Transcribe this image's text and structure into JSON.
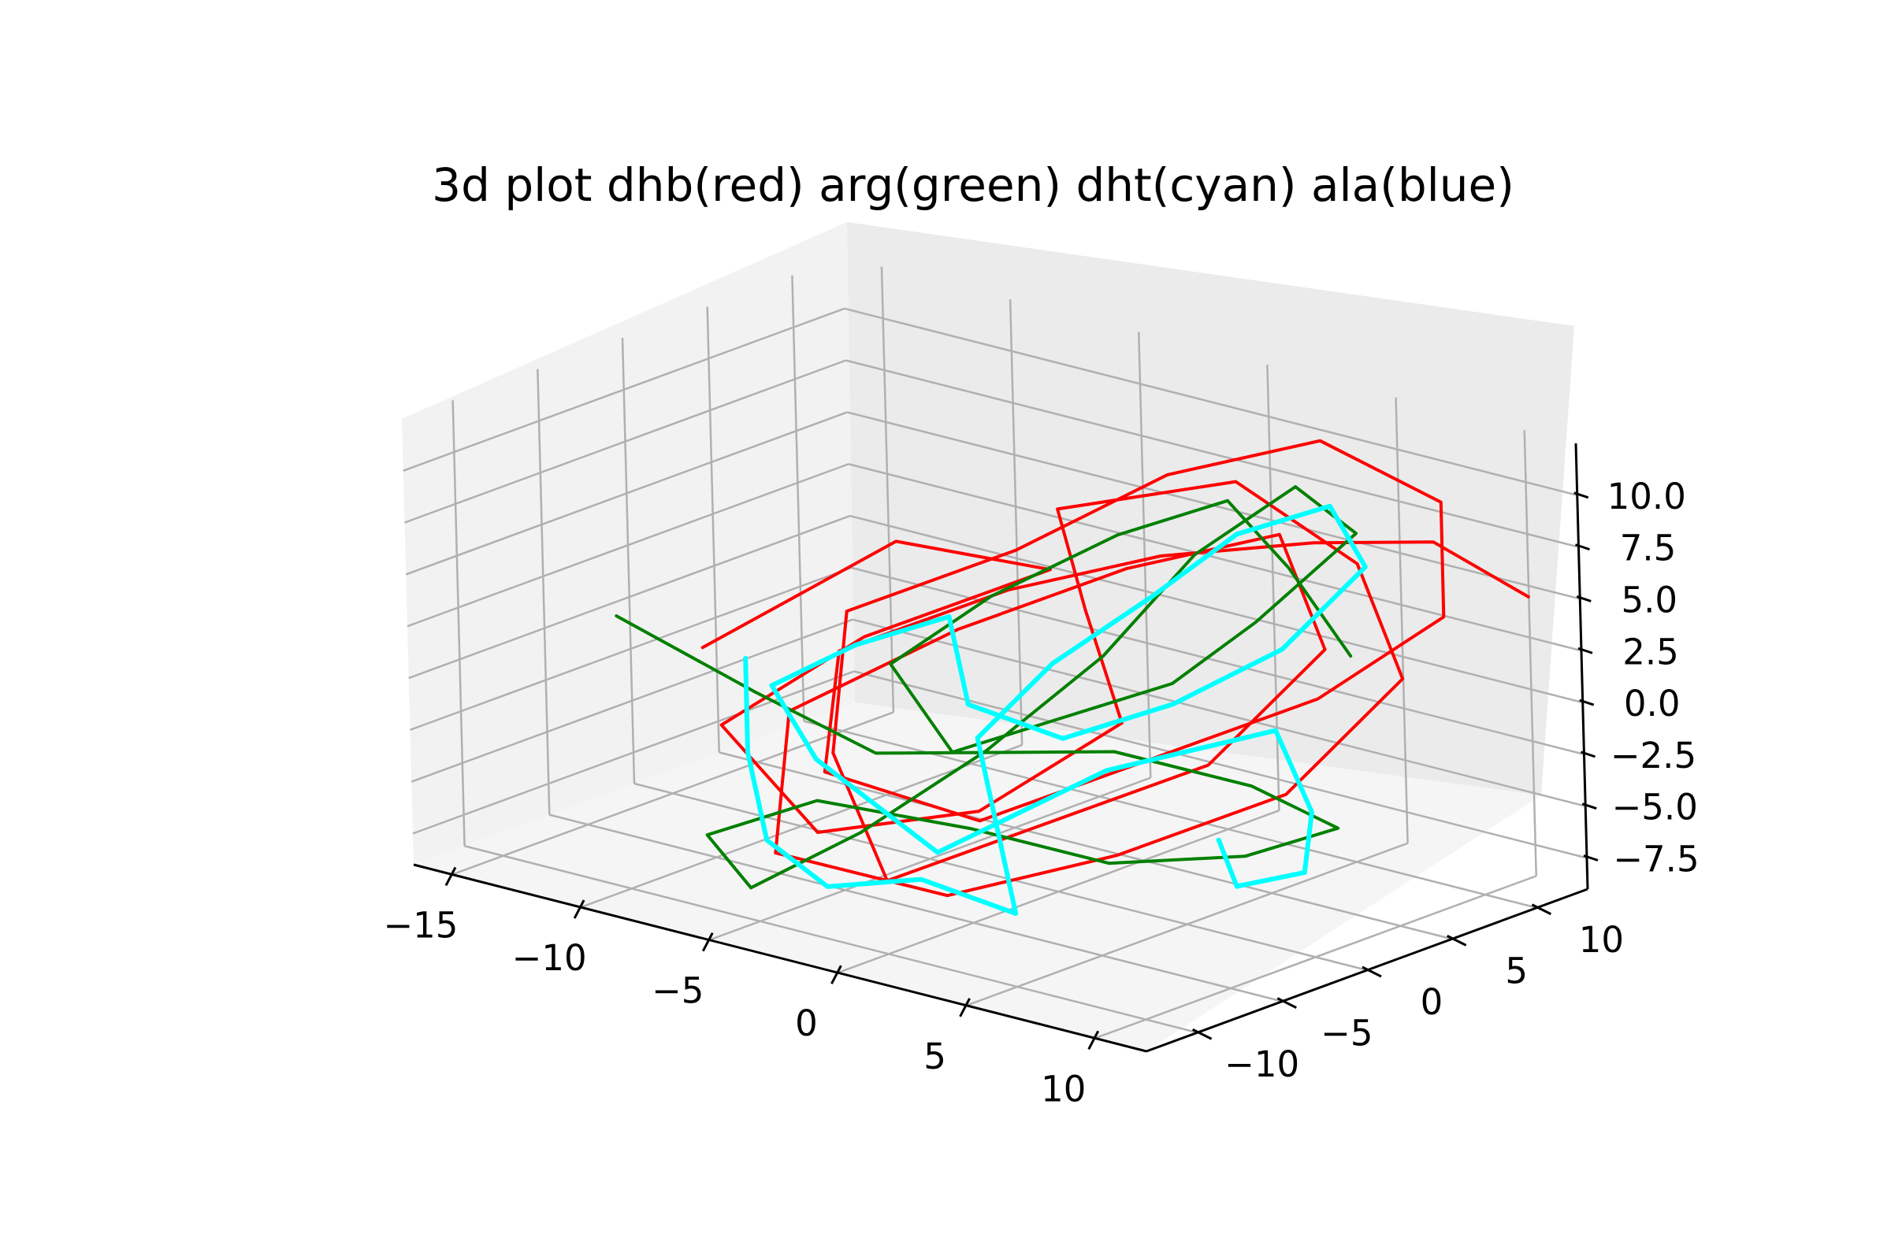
{
  "chart_data": {
    "type": "line",
    "projection": "3d",
    "title": "3d plot dhb(red) arg(green) dht(cyan) ala(blue)",
    "xlabel": "",
    "ylabel": "",
    "zlabel": "",
    "xlim": [
      -16.5,
      12
    ],
    "ylim": [
      -13,
      13
    ],
    "zlim": [
      -9,
      12.5
    ],
    "x_ticks": [
      -15,
      -10,
      -5,
      0,
      5,
      10
    ],
    "x_tick_labels": [
      "−15",
      "−10",
      "−5",
      "0",
      "5",
      "10"
    ],
    "y_ticks": [
      -10,
      -5,
      0,
      5,
      10
    ],
    "y_tick_labels": [
      "−10",
      "−5",
      "0",
      "5",
      "10"
    ],
    "z_ticks": [
      -7.5,
      -5.0,
      -2.5,
      0.0,
      2.5,
      5.0,
      7.5,
      10.0
    ],
    "z_tick_labels": [
      "−7.5",
      "−5.0",
      "−2.5",
      "0.0",
      "2.5",
      "5.0",
      "7.5",
      "10.0"
    ],
    "grid": true,
    "legend": "none",
    "series": [
      {
        "color": "#ff0000",
        "points": [
          [
            -11,
            -4,
            0.5
          ],
          [
            -6,
            0,
            6
          ],
          [
            -2,
            3,
            5
          ],
          [
            -6,
            -2,
            2
          ],
          [
            -9,
            -6,
            -2
          ],
          [
            -4,
            -8,
            -5
          ],
          [
            1,
            -6,
            -3
          ],
          [
            4,
            -2,
            1
          ],
          [
            0,
            2,
            4
          ],
          [
            -3,
            5,
            7
          ],
          [
            2,
            8,
            9
          ],
          [
            6,
            9,
            6
          ],
          [
            9,
            7,
            2
          ],
          [
            7,
            3,
            -3
          ],
          [
            3,
            -1,
            -6
          ],
          [
            -1,
            -5,
            -8
          ],
          [
            -5,
            -9,
            -6
          ],
          [
            -7,
            -5,
            -1
          ],
          [
            -3,
            -1,
            3
          ],
          [
            1,
            3,
            6
          ],
          [
            5,
            6,
            8
          ],
          [
            8,
            4,
            4
          ],
          [
            6,
            0,
            -1
          ],
          [
            2,
            -4,
            -4
          ],
          [
            -2,
            -7,
            -7
          ],
          [
            -6,
            -4,
            -3
          ],
          [
            -8,
            0,
            2
          ],
          [
            -4,
            4,
            5
          ],
          [
            0,
            7,
            9
          ],
          [
            4,
            10,
            11
          ],
          [
            8,
            11,
            9
          ],
          [
            10,
            8,
            5
          ],
          [
            7,
            5,
            1
          ],
          [
            3,
            1,
            -2
          ],
          [
            -1,
            -3,
            -5
          ],
          [
            -5,
            -6,
            -3
          ],
          [
            -7,
            -2,
            1
          ],
          [
            -3,
            2,
            4
          ],
          [
            1,
            5,
            6
          ],
          [
            5,
            8,
            7
          ],
          [
            9,
            9,
            8
          ],
          [
            12,
            10,
            6
          ]
        ]
      },
      {
        "color": "#008000",
        "points": [
          [
            -13,
            -6,
            2
          ],
          [
            -9,
            -4,
            -1
          ],
          [
            -5,
            -3,
            -3
          ],
          [
            -1,
            -2,
            -2
          ],
          [
            3,
            -1,
            -1
          ],
          [
            7,
            1,
            -2
          ],
          [
            9,
            3,
            -4
          ],
          [
            6,
            2,
            -6
          ],
          [
            2,
            0,
            -7
          ],
          [
            -2,
            -2,
            -6
          ],
          [
            -6,
            -5,
            -5
          ],
          [
            -9,
            -7,
            -7
          ],
          [
            -6,
            -9,
            -8
          ],
          [
            -3,
            -7,
            -5
          ],
          [
            0,
            -4,
            -1
          ],
          [
            2,
            0,
            3
          ],
          [
            3,
            4,
            7
          ],
          [
            5,
            7,
            10
          ],
          [
            8,
            6,
            9
          ],
          [
            6,
            3,
            5
          ],
          [
            4,
            1,
            2
          ],
          [
            1,
            -1,
            0
          ],
          [
            -2,
            -3,
            -2
          ],
          [
            -5,
            -2,
            1
          ],
          [
            -3,
            1,
            4
          ],
          [
            0,
            4,
            7
          ],
          [
            3,
            6,
            9
          ],
          [
            6,
            5,
            7
          ],
          [
            9,
            4,
            4
          ]
        ]
      },
      {
        "color": "#0000ff",
        "width": 3.5,
        "points": [
          [
            -10,
            -3,
            0
          ],
          [
            -8,
            -6,
            -3
          ],
          [
            -6,
            -8,
            -6
          ],
          [
            -3,
            -9,
            -7
          ],
          [
            0,
            -8,
            -6
          ],
          [
            3,
            -7,
            -7
          ],
          [
            1,
            -5,
            -4
          ],
          [
            -1,
            -3,
            -1
          ],
          [
            0,
            0,
            2
          ],
          [
            2,
            3,
            5
          ],
          [
            4,
            5,
            8
          ],
          [
            7,
            6,
            10
          ],
          [
            9,
            5,
            8
          ],
          [
            7,
            3,
            4
          ],
          [
            4,
            1,
            1
          ],
          [
            1,
            -1,
            -1
          ],
          [
            -2,
            -2,
            0
          ],
          [
            -4,
            0,
            3
          ],
          [
            -7,
            -1,
            1
          ],
          [
            -9,
            -3,
            -1
          ],
          [
            -6,
            -5,
            -3
          ],
          [
            -3,
            -6,
            -4
          ],
          [
            0,
            -7,
            -5
          ],
          [
            2,
            -5,
            -3
          ],
          [
            4,
            -3,
            -1
          ],
          [
            6,
            -1,
            0
          ],
          [
            8,
            1,
            1
          ],
          [
            10,
            0,
            -2
          ],
          [
            11,
            -2,
            -4
          ],
          [
            9,
            -3,
            -5
          ],
          [
            7,
            -1,
            -4
          ]
        ]
      },
      {
        "color": "#00ffff",
        "width": 6,
        "points": [
          [
            -10,
            -3,
            0
          ],
          [
            -8,
            -6,
            -3
          ],
          [
            -6,
            -8,
            -6
          ],
          [
            -3,
            -9,
            -7
          ],
          [
            0,
            -8,
            -6
          ],
          [
            3,
            -7,
            -7
          ],
          [
            1,
            -5,
            -4
          ],
          [
            -1,
            -3,
            -1
          ],
          [
            0,
            0,
            2
          ],
          [
            2,
            3,
            5
          ],
          [
            4,
            5,
            8
          ],
          [
            7,
            6,
            10
          ],
          [
            9,
            5,
            8
          ],
          [
            7,
            3,
            4
          ],
          [
            4,
            1,
            1
          ],
          [
            1,
            -1,
            -1
          ],
          [
            -2,
            -2,
            0
          ],
          [
            -4,
            0,
            3
          ],
          [
            -7,
            -1,
            1
          ],
          [
            -9,
            -3,
            -1
          ],
          [
            -6,
            -5,
            -3
          ],
          [
            -3,
            -6,
            -4
          ],
          [
            0,
            -7,
            -5
          ],
          [
            2,
            -5,
            -3
          ],
          [
            4,
            -3,
            -1
          ],
          [
            6,
            -1,
            0
          ],
          [
            8,
            1,
            1
          ],
          [
            10,
            0,
            -2
          ],
          [
            11,
            -2,
            -4
          ],
          [
            9,
            -3,
            -5
          ],
          [
            7,
            -1,
            -4
          ]
        ]
      }
    ]
  }
}
